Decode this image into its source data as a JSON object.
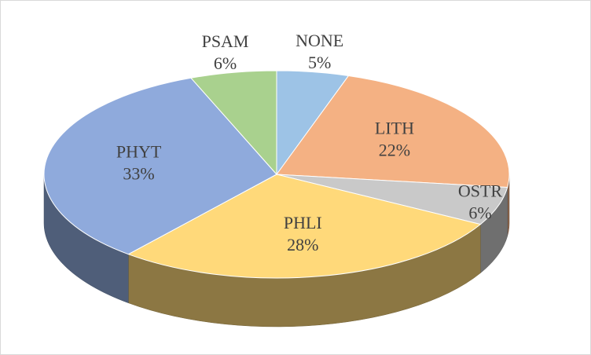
{
  "chart_data": {
    "type": "pie3d",
    "categories": [
      "NONE",
      "LITH",
      "OSTR",
      "PHLI",
      "PHYT",
      "PSAM"
    ],
    "values": [
      5,
      22,
      6,
      28,
      33,
      6
    ],
    "value_labels": [
      "5%",
      "22%",
      "6%",
      "28%",
      "33%",
      "6%"
    ],
    "colors": [
      "#9dc3e6",
      "#f4b183",
      "#c9c9c9",
      "#ffd97a",
      "#8faadc",
      "#a9d18e"
    ]
  }
}
